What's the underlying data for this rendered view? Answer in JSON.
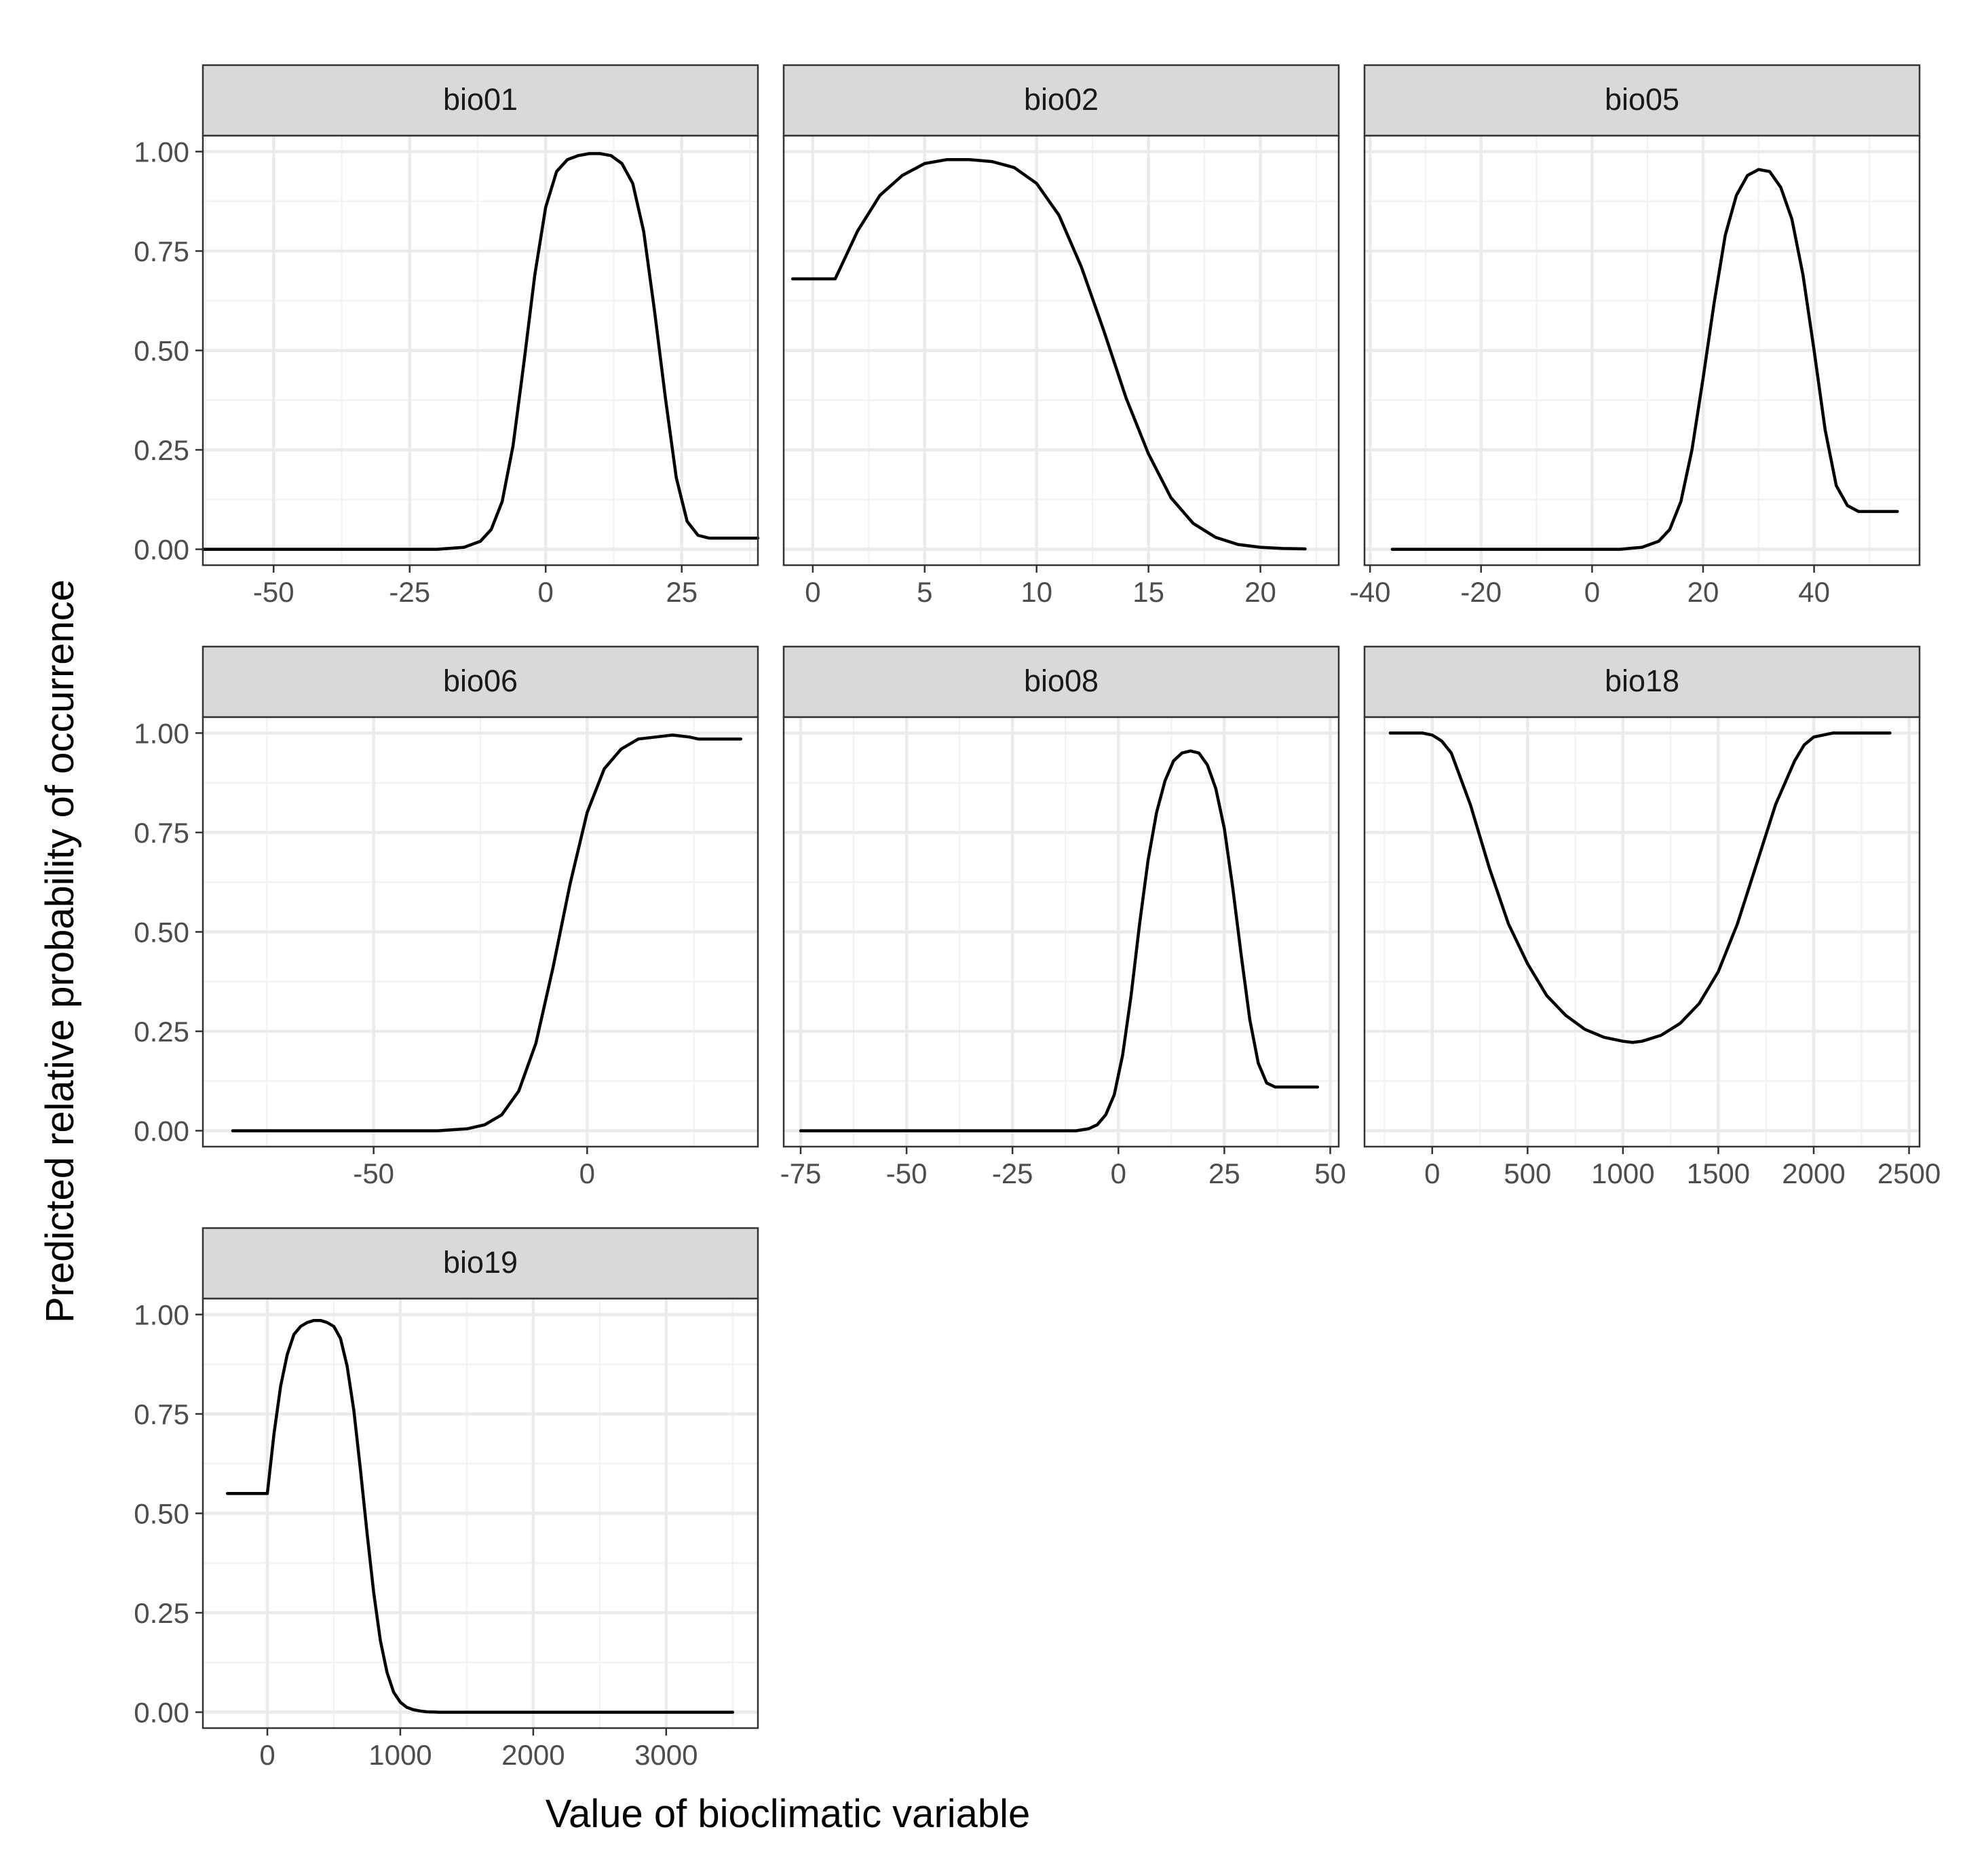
{
  "chart_data": {
    "type": "line",
    "layout": "facet_wrap",
    "ylabel": "Predicted relative probability of occurrence",
    "xlabel": "Value of bioclimatic variable",
    "line_color": "#000000",
    "grid": true,
    "y_ticks": [
      0,
      0.25,
      0.5,
      0.75,
      1.0
    ],
    "y_tick_labels": [
      "0.00",
      "0.25",
      "0.50",
      "0.75",
      "1.00"
    ],
    "ylim": [
      -0.04,
      1.04
    ],
    "panels": [
      {
        "name": "bio01",
        "xlim": [
          -63,
          39
        ],
        "x_ticks": [
          -50,
          -25,
          0,
          25
        ],
        "x_tick_labels": [
          "-50",
          "-25",
          "0",
          "25"
        ],
        "x": [
          -63,
          -20,
          -15,
          -12,
          -10,
          -8,
          -6,
          -4,
          -2,
          0,
          2,
          4,
          6,
          8,
          10,
          12,
          14,
          16,
          18,
          20,
          22,
          24,
          26,
          28,
          30,
          35,
          39
        ],
        "y": [
          0,
          0,
          0.005,
          0.02,
          0.05,
          0.12,
          0.26,
          0.47,
          0.69,
          0.86,
          0.95,
          0.98,
          0.99,
          0.995,
          0.995,
          0.99,
          0.97,
          0.92,
          0.8,
          0.6,
          0.38,
          0.18,
          0.07,
          0.035,
          0.028,
          0.028,
          0.028
        ]
      },
      {
        "name": "bio02",
        "xlim": [
          -1.3,
          23.5
        ],
        "x_ticks": [
          0,
          5,
          10,
          15,
          20
        ],
        "x_tick_labels": [
          "0",
          "5",
          "10",
          "15",
          "20"
        ],
        "x": [
          -0.9,
          1.0,
          1.5,
          2,
          3,
          4,
          5,
          6,
          7,
          8,
          9,
          10,
          11,
          12,
          13,
          14,
          15,
          16,
          17,
          18,
          19,
          20,
          21,
          22
        ],
        "y": [
          0.68,
          0.68,
          0.74,
          0.8,
          0.89,
          0.94,
          0.97,
          0.98,
          0.98,
          0.975,
          0.96,
          0.92,
          0.84,
          0.71,
          0.55,
          0.38,
          0.24,
          0.13,
          0.065,
          0.03,
          0.012,
          0.005,
          0.002,
          0.001
        ]
      },
      {
        "name": "bio05",
        "xlim": [
          -41,
          59
        ],
        "x_ticks": [
          -40,
          -20,
          0,
          20,
          40
        ],
        "x_tick_labels": [
          "-40",
          "-20",
          "0",
          "20",
          "40"
        ],
        "x": [
          -36,
          5,
          9,
          12,
          14,
          16,
          18,
          20,
          22,
          24,
          26,
          28,
          30,
          32,
          34,
          36,
          38,
          40,
          42,
          44,
          46,
          48,
          52,
          55
        ],
        "y": [
          0,
          0,
          0.005,
          0.02,
          0.05,
          0.12,
          0.25,
          0.43,
          0.62,
          0.79,
          0.89,
          0.94,
          0.955,
          0.95,
          0.91,
          0.83,
          0.69,
          0.5,
          0.3,
          0.16,
          0.11,
          0.095,
          0.095,
          0.095
        ]
      },
      {
        "name": "bio06",
        "xlim": [
          -90,
          40
        ],
        "x_ticks": [
          -50,
          0
        ],
        "x_tick_labels": [
          "-50",
          "0"
        ],
        "x": [
          -83,
          -35,
          -28,
          -24,
          -20,
          -16,
          -12,
          -8,
          -4,
          0,
          4,
          8,
          12,
          16,
          20,
          24,
          26,
          30,
          36
        ],
        "y": [
          0,
          0,
          0.005,
          0.015,
          0.04,
          0.1,
          0.22,
          0.41,
          0.62,
          0.8,
          0.91,
          0.96,
          0.985,
          0.99,
          0.995,
          0.99,
          0.985,
          0.985,
          0.985
        ]
      },
      {
        "name": "bio08",
        "xlim": [
          -79,
          52
        ],
        "x_ticks": [
          -75,
          -50,
          -25,
          0,
          25,
          50
        ],
        "x_tick_labels": [
          "-75",
          "-50",
          "-25",
          "0",
          "25",
          "50"
        ],
        "x": [
          -75,
          -10,
          -7,
          -5,
          -3,
          -1,
          1,
          3,
          5,
          7,
          9,
          11,
          13,
          15,
          17,
          19,
          21,
          23,
          25,
          27,
          29,
          31,
          33,
          35,
          37,
          40,
          47
        ],
        "y": [
          0,
          0,
          0.005,
          0.015,
          0.04,
          0.09,
          0.19,
          0.34,
          0.52,
          0.68,
          0.8,
          0.88,
          0.93,
          0.95,
          0.955,
          0.95,
          0.92,
          0.86,
          0.76,
          0.61,
          0.44,
          0.28,
          0.17,
          0.12,
          0.11,
          0.11,
          0.11
        ]
      },
      {
        "name": "bio18",
        "xlim": [
          -355,
          2555
        ],
        "x_ticks": [
          0,
          500,
          1000,
          1500,
          2000,
          2500
        ],
        "x_tick_labels": [
          "0",
          "500",
          "1000",
          "1500",
          "2000",
          "2500"
        ],
        "x": [
          -220,
          -50,
          0,
          50,
          100,
          200,
          300,
          400,
          500,
          600,
          700,
          800,
          900,
          1000,
          1050,
          1100,
          1200,
          1300,
          1400,
          1500,
          1600,
          1700,
          1800,
          1900,
          1950,
          2000,
          2100,
          2200,
          2400
        ],
        "y": [
          1.0,
          1.0,
          0.995,
          0.98,
          0.95,
          0.82,
          0.66,
          0.52,
          0.42,
          0.34,
          0.29,
          0.255,
          0.235,
          0.225,
          0.222,
          0.225,
          0.24,
          0.27,
          0.32,
          0.4,
          0.52,
          0.67,
          0.82,
          0.93,
          0.97,
          0.99,
          1.0,
          1.0,
          1.0
        ]
      },
      {
        "name": "bio19",
        "xlim": [
          -485,
          3690
        ],
        "x_ticks": [
          0,
          1000,
          2000,
          3000
        ],
        "x_tick_labels": [
          "0",
          "1000",
          "2000",
          "3000"
        ],
        "x": [
          -300,
          0,
          50,
          100,
          150,
          200,
          250,
          300,
          350,
          400,
          450,
          500,
          550,
          600,
          650,
          700,
          750,
          800,
          850,
          900,
          950,
          1000,
          1050,
          1100,
          1150,
          1200,
          1300,
          1400,
          3500
        ],
        "y": [
          0.55,
          0.55,
          0.7,
          0.82,
          0.9,
          0.95,
          0.97,
          0.98,
          0.985,
          0.985,
          0.98,
          0.97,
          0.94,
          0.87,
          0.76,
          0.61,
          0.45,
          0.3,
          0.18,
          0.1,
          0.05,
          0.025,
          0.012,
          0.006,
          0.003,
          0.001,
          0,
          0,
          0
        ]
      }
    ]
  }
}
